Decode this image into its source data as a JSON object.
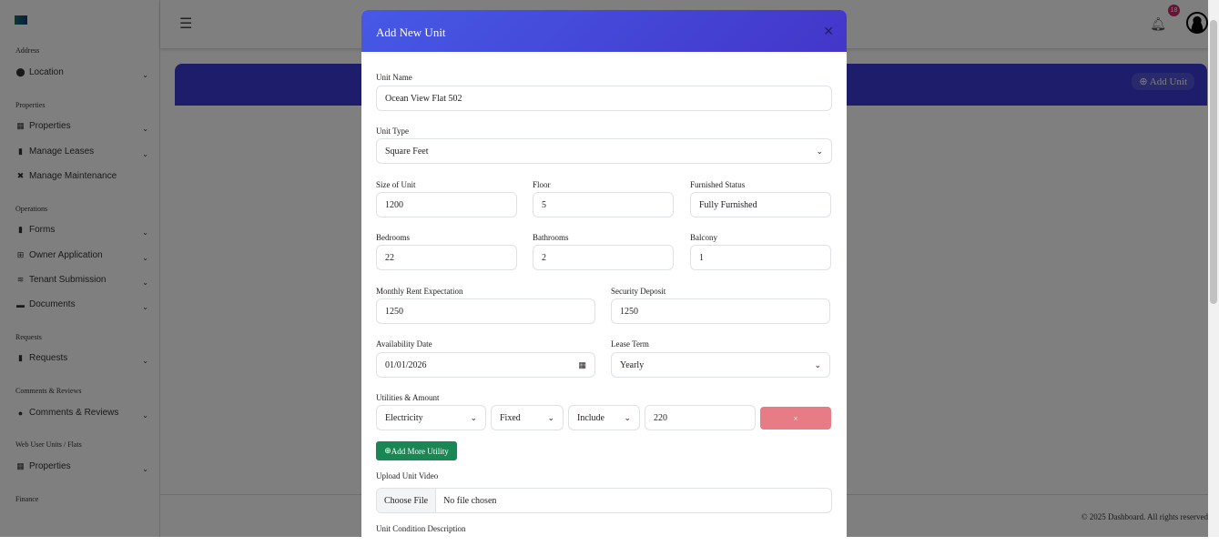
{
  "sidebar": {
    "sections": [
      {
        "title": "Address",
        "items": [
          {
            "label": "Location",
            "icon": "map-pin-icon",
            "chevron": true
          }
        ]
      },
      {
        "title": "Properties",
        "items": [
          {
            "label": "Properties",
            "icon": "building-icon",
            "chevron": true
          },
          {
            "label": "Manage Leases",
            "icon": "file-icon",
            "chevron": true
          },
          {
            "label": "Manage Maintenance",
            "icon": "tools-icon",
            "chevron": false
          }
        ]
      },
      {
        "title": "Operations",
        "items": [
          {
            "label": "Forms",
            "icon": "file-icon",
            "chevron": true
          },
          {
            "label": "Owner Application",
            "icon": "table-icon",
            "chevron": true
          },
          {
            "label": "Tenant Submission",
            "icon": "layers-icon",
            "chevron": true
          },
          {
            "label": "Documents",
            "icon": "folder-icon",
            "chevron": true
          }
        ]
      },
      {
        "title": "Requests",
        "items": [
          {
            "label": "Requests",
            "icon": "clipboard-icon",
            "chevron": true
          }
        ]
      },
      {
        "title": "Comments & Reviews",
        "items": [
          {
            "label": "Comments & Reviews",
            "icon": "comments-icon",
            "chevron": true
          }
        ]
      },
      {
        "title": "Web User Units / Flats",
        "items": [
          {
            "label": "Properties",
            "icon": "building-icon",
            "chevron": true
          }
        ]
      },
      {
        "title": "Finance",
        "items": []
      }
    ]
  },
  "header": {
    "notification_count": "18",
    "add_unit_label": "Add Unit"
  },
  "footer": {
    "text": "© 2025 Dashboard. All rights reserved"
  },
  "modal": {
    "title": "Add New Unit",
    "unit_name": {
      "label": "Unit Name",
      "value": "Ocean View Flat 502"
    },
    "unit_type": {
      "label": "Unit Type",
      "value": "Square Feet"
    },
    "size": {
      "label": "Size of Unit",
      "value": "1200"
    },
    "floor": {
      "label": "Floor",
      "value": "5"
    },
    "furnished": {
      "label": "Furnished Status",
      "value": "Fully Furnished"
    },
    "bedrooms": {
      "label": "Bedrooms",
      "value": "22"
    },
    "bathrooms": {
      "label": "Bathrooms",
      "value": "2"
    },
    "balcony": {
      "label": "Balcony",
      "value": "1"
    },
    "rent": {
      "label": "Monthly Rent Expectation",
      "value": "1250"
    },
    "deposit": {
      "label": "Security Deposit",
      "value": "1250"
    },
    "availability": {
      "label": "Availability Date",
      "value": "01/01/2026"
    },
    "lease_term": {
      "label": "Lease Term",
      "value": "Yearly"
    },
    "utilities": {
      "label": "Utilities & Amount",
      "type": "Electricity",
      "mode": "Fixed",
      "include": "Include",
      "amount": "220",
      "remove": "×",
      "add_more": "Add More Utility"
    },
    "video": {
      "label": "Upload Unit Video",
      "button": "Choose File",
      "status": "No file chosen"
    },
    "condition": {
      "label": "Unit Condition Description"
    }
  }
}
